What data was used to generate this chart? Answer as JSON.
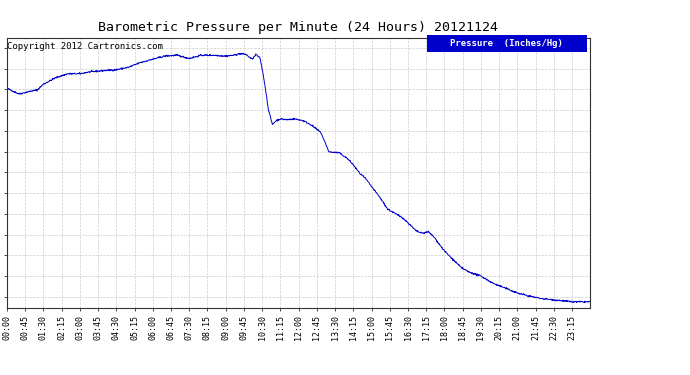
{
  "title": "Barometric Pressure per Minute (24 Hours) 20121124",
  "copyright": "Copyright 2012 Cartronics.com",
  "legend_label": "Pressure  (Inches/Hg)",
  "background_color": "#ffffff",
  "plot_bg_color": "#ffffff",
  "line_color": "#0000cc",
  "legend_bg_color": "#0000cc",
  "legend_text_color": "#ffffff",
  "grid_color": "#cccccc",
  "yticks": [
    29.861,
    29.887,
    29.913,
    29.938,
    29.964,
    29.99,
    30.016,
    30.041,
    30.067,
    30.093,
    30.119,
    30.144,
    30.17
  ],
  "ymin": 29.848,
  "ymax": 30.183,
  "num_points": 1440,
  "keypoints": [
    [
      0,
      30.12
    ],
    [
      30,
      30.113
    ],
    [
      55,
      30.116
    ],
    [
      75,
      30.118
    ],
    [
      90,
      30.125
    ],
    [
      120,
      30.133
    ],
    [
      150,
      30.138
    ],
    [
      180,
      30.138
    ],
    [
      200,
      30.14
    ],
    [
      240,
      30.142
    ],
    [
      270,
      30.143
    ],
    [
      300,
      30.146
    ],
    [
      330,
      30.152
    ],
    [
      360,
      30.156
    ],
    [
      390,
      30.16
    ],
    [
      420,
      30.161
    ],
    [
      450,
      30.157
    ],
    [
      480,
      30.161
    ],
    [
      510,
      30.161
    ],
    [
      540,
      30.16
    ],
    [
      560,
      30.161
    ],
    [
      575,
      30.163
    ],
    [
      590,
      30.162
    ],
    [
      605,
      30.156
    ],
    [
      615,
      30.162
    ],
    [
      625,
      30.157
    ],
    [
      635,
      30.13
    ],
    [
      645,
      30.095
    ],
    [
      655,
      30.075
    ],
    [
      665,
      30.08
    ],
    [
      675,
      30.082
    ],
    [
      690,
      30.081
    ],
    [
      710,
      30.082
    ],
    [
      730,
      30.08
    ],
    [
      750,
      30.075
    ],
    [
      775,
      30.065
    ],
    [
      795,
      30.041
    ],
    [
      820,
      30.04
    ],
    [
      840,
      30.033
    ],
    [
      855,
      30.025
    ],
    [
      870,
      30.015
    ],
    [
      885,
      30.008
    ],
    [
      900,
      29.998
    ],
    [
      920,
      29.985
    ],
    [
      940,
      29.97
    ],
    [
      960,
      29.964
    ],
    [
      975,
      29.96
    ],
    [
      990,
      29.953
    ],
    [
      1010,
      29.943
    ],
    [
      1025,
      29.94
    ],
    [
      1040,
      29.942
    ],
    [
      1055,
      29.935
    ],
    [
      1065,
      29.928
    ],
    [
      1080,
      29.918
    ],
    [
      1100,
      29.908
    ],
    [
      1120,
      29.898
    ],
    [
      1140,
      29.892
    ],
    [
      1170,
      29.887
    ],
    [
      1200,
      29.878
    ],
    [
      1230,
      29.872
    ],
    [
      1260,
      29.866
    ],
    [
      1290,
      29.862
    ],
    [
      1320,
      29.859
    ],
    [
      1360,
      29.857
    ],
    [
      1395,
      29.855
    ],
    [
      1439,
      29.855
    ]
  ]
}
